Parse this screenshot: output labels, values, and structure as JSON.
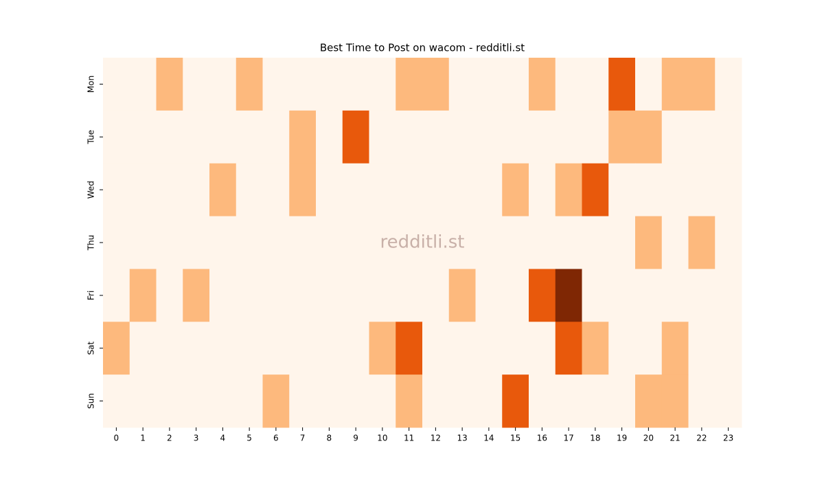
{
  "chart_data": {
    "type": "heatmap",
    "title": "Best Time to Post on wacom - redditli.st",
    "watermark": "redditli.st",
    "x_categories": [
      0,
      1,
      2,
      3,
      4,
      5,
      6,
      7,
      8,
      9,
      10,
      11,
      12,
      13,
      14,
      15,
      16,
      17,
      18,
      19,
      20,
      21,
      22,
      23
    ],
    "y_categories": [
      "Mon",
      "Tue",
      "Wed",
      "Thu",
      "Fri",
      "Sat",
      "Sun"
    ],
    "values": [
      [
        0,
        0,
        1,
        0,
        0,
        1,
        0,
        0,
        0,
        0,
        0,
        1,
        1,
        0,
        0,
        0,
        1,
        0,
        0,
        2,
        0,
        1,
        1,
        0
      ],
      [
        0,
        0,
        0,
        0,
        0,
        0,
        0,
        1,
        0,
        2,
        0,
        0,
        0,
        0,
        0,
        0,
        0,
        0,
        0,
        1,
        1,
        0,
        0,
        0
      ],
      [
        0,
        0,
        0,
        0,
        1,
        0,
        0,
        1,
        0,
        0,
        0,
        0,
        0,
        0,
        0,
        1,
        0,
        1,
        2,
        0,
        0,
        0,
        0,
        0
      ],
      [
        0,
        0,
        0,
        0,
        0,
        0,
        0,
        0,
        0,
        0,
        0,
        0,
        0,
        0,
        0,
        0,
        0,
        0,
        0,
        0,
        1,
        0,
        1,
        0
      ],
      [
        0,
        1,
        0,
        1,
        0,
        0,
        0,
        0,
        0,
        0,
        0,
        0,
        0,
        1,
        0,
        0,
        2,
        3,
        0,
        0,
        0,
        0,
        0,
        0
      ],
      [
        1,
        0,
        0,
        0,
        0,
        0,
        0,
        0,
        0,
        0,
        1,
        2,
        0,
        0,
        0,
        0,
        0,
        2,
        1,
        0,
        0,
        1,
        0,
        0
      ],
      [
        0,
        0,
        0,
        0,
        0,
        0,
        1,
        0,
        0,
        0,
        0,
        1,
        0,
        0,
        0,
        2,
        0,
        0,
        0,
        0,
        1,
        1,
        0,
        0
      ]
    ],
    "color_scale": [
      "#fff5eb",
      "#fdb97d",
      "#e8590c",
      "#7f2704"
    ]
  }
}
